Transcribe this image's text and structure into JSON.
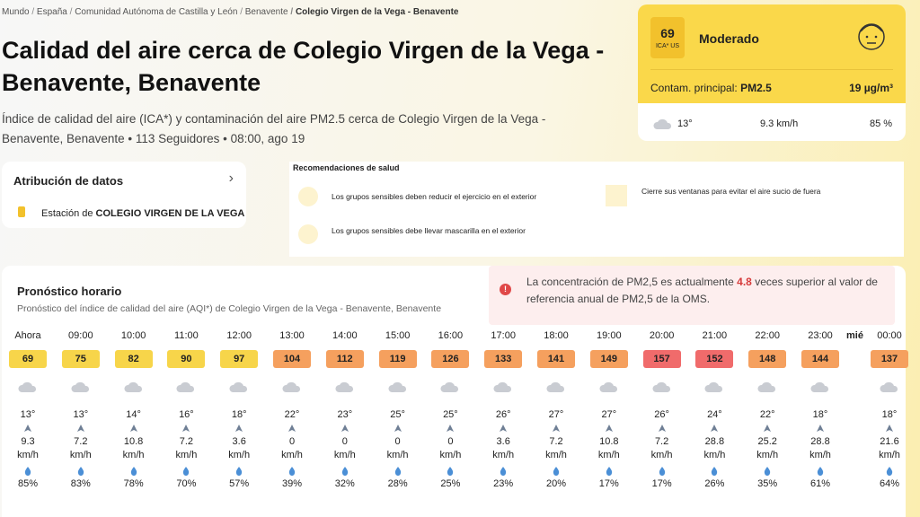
{
  "breadcrumb": [
    "Mundo",
    "España",
    "Comunidad Autónoma de Castilla y León",
    "Benavente",
    "Colegio Virgen de la Vega - Benavente"
  ],
  "header": {
    "title": "Calidad del aire cerca de Colegio Virgen de la Vega - Benavente, Benavente",
    "subtitle": "Índice de calidad del aire (ICA*) y contaminación del aire PM2.5 cerca de Colegio Virgen de la Vega - Benavente, Benavente • 113 Seguidores • 08:00, ago 19"
  },
  "summary": {
    "aqi": 69,
    "aqi_label": "ICA* US",
    "status": "Moderado",
    "pollutant_label": "Contam. principal:",
    "pollutant": "PM2.5",
    "concentration": "19 µg/m³",
    "temperature": "13°",
    "wind": "9.3 km/h",
    "humidity": "85 %"
  },
  "attribution": {
    "title": "Atribución de datos",
    "station_prefix": "Estación de",
    "station": "COLEGIO VIRGEN DE LA VEGA"
  },
  "health": {
    "title": "Recomendaciones de salud",
    "items": [
      "Los grupos sensibles deben reducir el ejercicio en el exterior",
      "Cierre sus ventanas para evitar el aire sucio de fuera",
      "Los grupos sensibles debe llevar mascarilla en el exterior"
    ]
  },
  "alert": {
    "text_before": "La concentración de PM2,5 es actualmente",
    "ratio": "4.8",
    "text_after": "veces superior al valor de referencia anual de PM2,5 de la OMS."
  },
  "forecast": {
    "title": "Pronóstico horario",
    "subtitle": "Pronóstico del índice de calidad del aire (AQI*) de Colegio Virgen de la Vega - Benavente, Benavente",
    "day_marker": "mié",
    "wind_unit": "km/h",
    "hours": [
      {
        "time": "Ahora",
        "aqi": 69,
        "color": "#f7d54a",
        "temp": "13°",
        "wind": "9.3",
        "humidity": "85%"
      },
      {
        "time": "09:00",
        "aqi": 75,
        "color": "#f7d54a",
        "temp": "13°",
        "wind": "7.2",
        "humidity": "83%"
      },
      {
        "time": "10:00",
        "aqi": 82,
        "color": "#f7d54a",
        "temp": "14°",
        "wind": "10.8",
        "humidity": "78%"
      },
      {
        "time": "11:00",
        "aqi": 90,
        "color": "#f7d54a",
        "temp": "16°",
        "wind": "7.2",
        "humidity": "70%"
      },
      {
        "time": "12:00",
        "aqi": 97,
        "color": "#f7d54a",
        "temp": "18°",
        "wind": "3.6",
        "humidity": "57%"
      },
      {
        "time": "13:00",
        "aqi": 104,
        "color": "#f5a05e",
        "temp": "22°",
        "wind": "0",
        "humidity": "39%"
      },
      {
        "time": "14:00",
        "aqi": 112,
        "color": "#f5a05e",
        "temp": "23°",
        "wind": "0",
        "humidity": "32%"
      },
      {
        "time": "15:00",
        "aqi": 119,
        "color": "#f5a05e",
        "temp": "25°",
        "wind": "0",
        "humidity": "28%"
      },
      {
        "time": "16:00",
        "aqi": 126,
        "color": "#f5a05e",
        "temp": "25°",
        "wind": "0",
        "humidity": "25%"
      },
      {
        "time": "17:00",
        "aqi": 133,
        "color": "#f5a05e",
        "temp": "26°",
        "wind": "3.6",
        "humidity": "23%"
      },
      {
        "time": "18:00",
        "aqi": 141,
        "color": "#f5a05e",
        "temp": "27°",
        "wind": "7.2",
        "humidity": "20%"
      },
      {
        "time": "19:00",
        "aqi": 149,
        "color": "#f5a05e",
        "temp": "27°",
        "wind": "10.8",
        "humidity": "17%"
      },
      {
        "time": "20:00",
        "aqi": 157,
        "color": "#f06b6b",
        "temp": "26°",
        "wind": "7.2",
        "humidity": "17%"
      },
      {
        "time": "21:00",
        "aqi": 152,
        "color": "#f06b6b",
        "temp": "24°",
        "wind": "28.8",
        "humidity": "26%"
      },
      {
        "time": "22:00",
        "aqi": 148,
        "color": "#f5a05e",
        "temp": "22°",
        "wind": "25.2",
        "humidity": "35%"
      },
      {
        "time": "23:00",
        "aqi": 144,
        "color": "#f5a05e",
        "temp": "18°",
        "wind": "28.8",
        "humidity": "61%"
      },
      {
        "time": "00:00",
        "aqi": 137,
        "color": "#f5a05e",
        "temp": "18°",
        "wind": "21.6",
        "humidity": "64%"
      }
    ]
  }
}
